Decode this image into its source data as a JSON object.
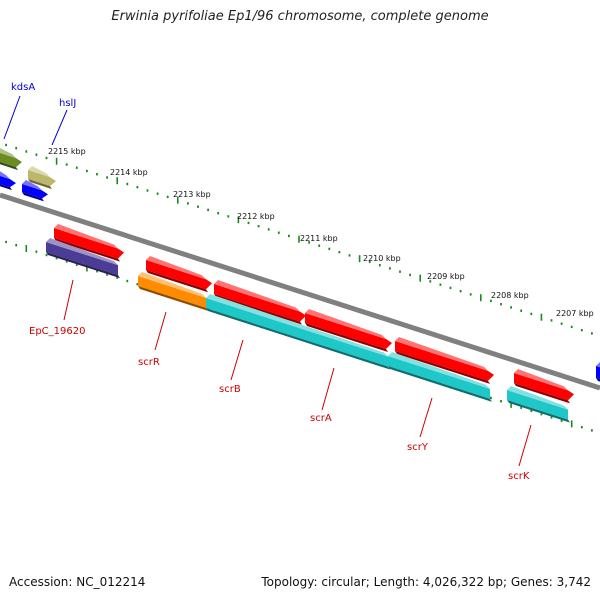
{
  "title": "Erwinia pyrifoliae Ep1/96 chromosome, complete genome",
  "footer": {
    "accession": "Accession: NC_012214",
    "summary": "Topology: circular; Length: 4,026,322 bp; Genes: 3,742"
  },
  "colors": {
    "backbone": "#808080",
    "tick": "#1a8a1a",
    "label_blue": "#0000cc",
    "label_red": "#cc0000",
    "gene_red": "#ff0000",
    "gene_cyan": "#1ec8c8",
    "gene_orange": "#ff8c00",
    "gene_purple": "#4b3c96",
    "gene_olive": "#6b8c23",
    "gene_khaki": "#bdb76b",
    "gene_blue": "#0000ff"
  },
  "ticks": [
    "2215 kbp",
    "2214 kbp",
    "2213 kbp",
    "2212 kbp",
    "2211 kbp",
    "2210 kbp",
    "2209 kbp",
    "2208 kbp",
    "2207 kbp"
  ],
  "gene_labels": [
    "kdsA",
    "hslJ",
    "EpC_19620",
    "scrR",
    "scrB",
    "scrA",
    "scrY",
    "scrK"
  ]
}
